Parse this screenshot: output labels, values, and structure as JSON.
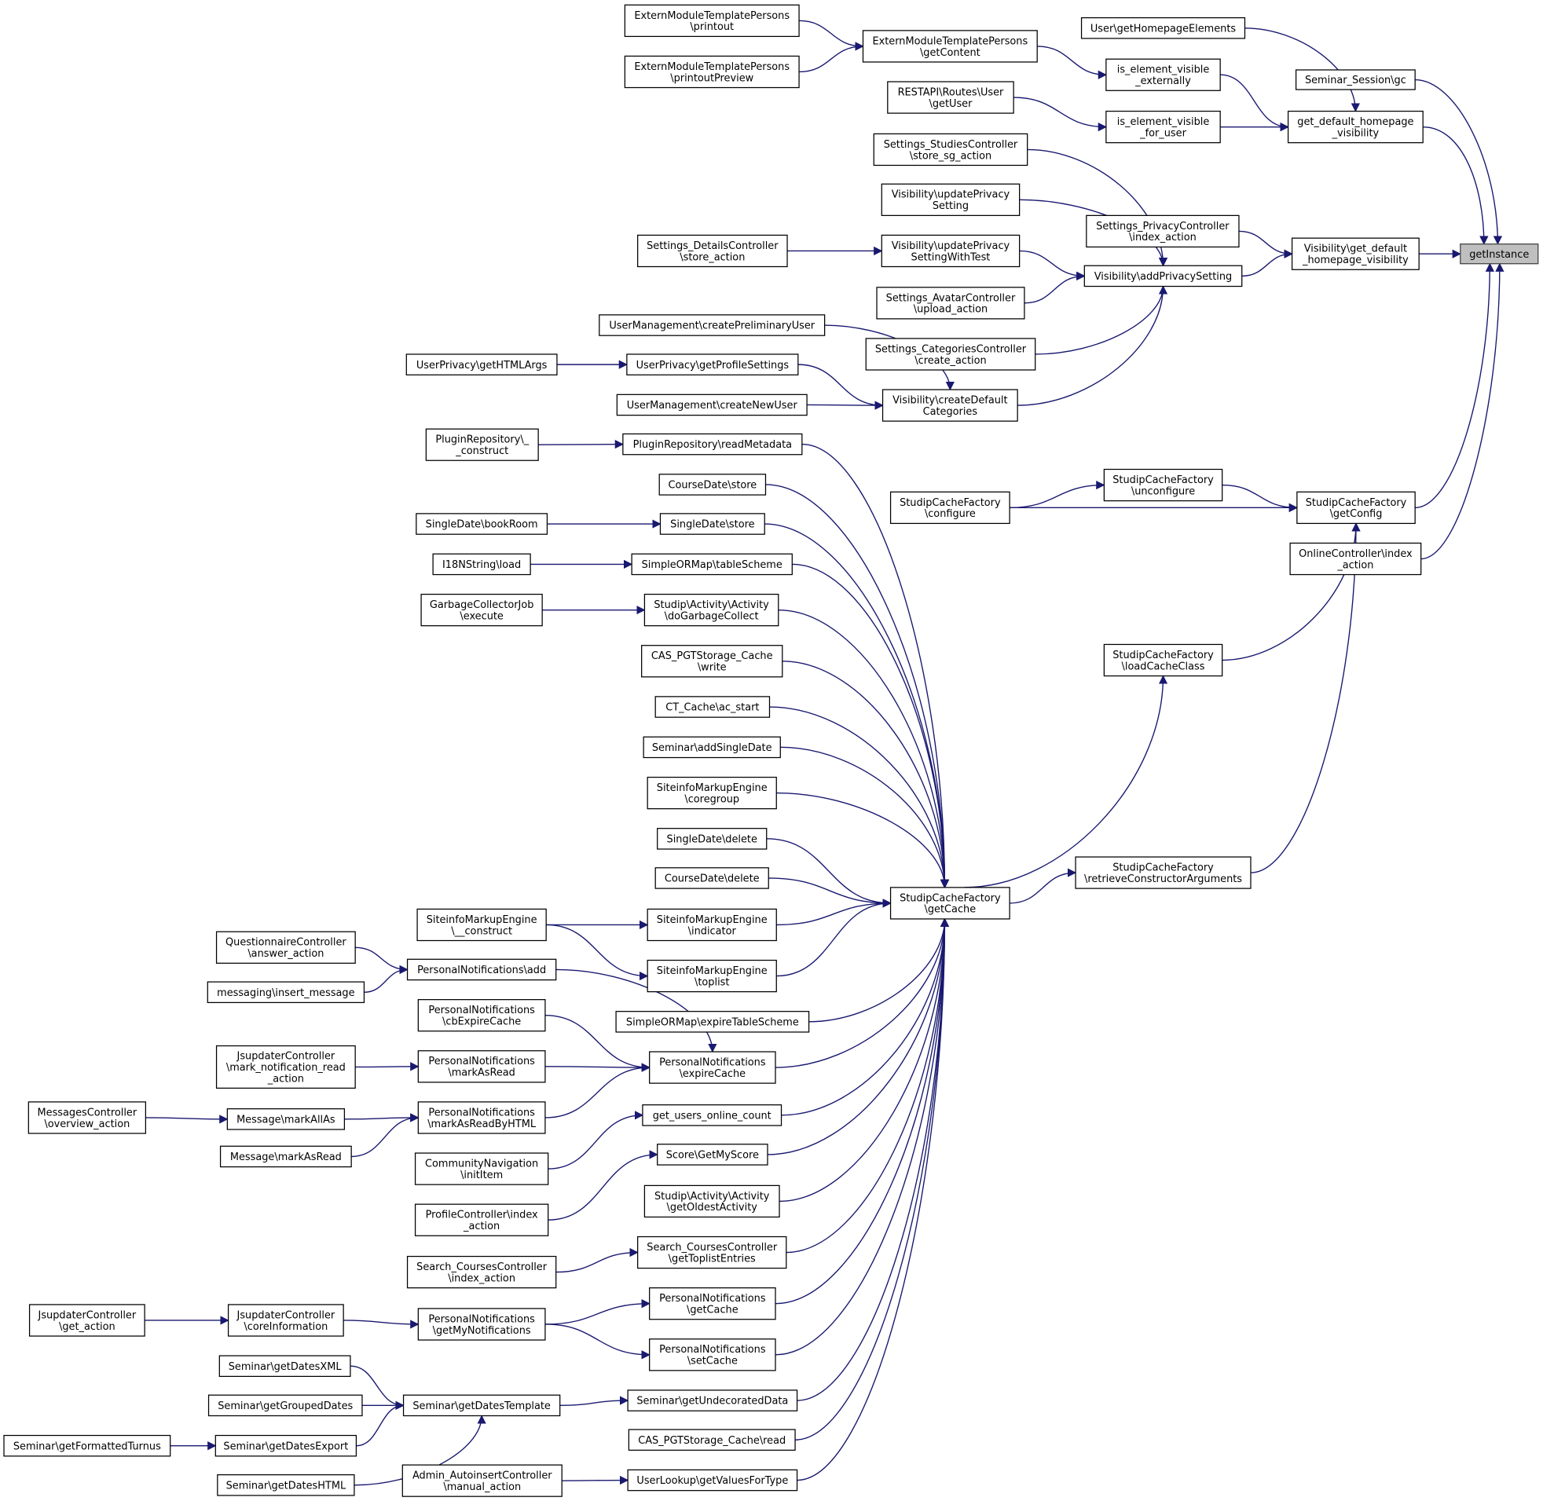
{
  "colors": {
    "edge": "#191970",
    "focus_fill": "#bfbfbf",
    "node_fill": "#ffffff"
  },
  "nodes": [
    {
      "lines": [
        "getInstance"
      ],
      "focus": true
    },
    {
      "lines": [
        "Seminar_Session\\gc"
      ]
    },
    {
      "lines": [
        "get_default_homepage",
        "_visibility"
      ]
    },
    {
      "lines": [
        "Visibility\\get_default",
        "_homepage_visibility"
      ]
    },
    {
      "lines": [
        "StudipCacheFactory",
        "\\getConfig"
      ]
    },
    {
      "lines": [
        "OnlineController\\index",
        "_action"
      ]
    },
    {
      "lines": [
        "User\\getHomepageElements"
      ]
    },
    {
      "lines": [
        "is_element_visible",
        "_externally"
      ]
    },
    {
      "lines": [
        "is_element_visible",
        "_for_user"
      ]
    },
    {
      "lines": [
        "Settings_PrivacyController",
        "\\index_action"
      ]
    },
    {
      "lines": [
        "Visibility\\addPrivacySetting"
      ]
    },
    {
      "lines": [
        "StudipCacheFactory",
        "\\unconfigure"
      ]
    },
    {
      "lines": [
        "StudipCacheFactory",
        "\\loadCacheClass"
      ]
    },
    {
      "lines": [
        "StudipCacheFactory",
        "\\retrieveConstructorArguments"
      ]
    },
    {
      "lines": [
        "StudipCacheFactory",
        "\\configure"
      ]
    },
    {
      "lines": [
        "StudipCacheFactory",
        "\\getCache"
      ]
    },
    {
      "lines": [
        "ExternModuleTemplatePersons",
        "\\getContent"
      ]
    },
    {
      "lines": [
        "ExternModuleTemplatePersons",
        "\\printout"
      ]
    },
    {
      "lines": [
        "ExternModuleTemplatePersons",
        "\\printoutPreview"
      ]
    },
    {
      "lines": [
        "RESTAPI\\Routes\\User",
        "\\getUser"
      ]
    },
    {
      "lines": [
        "Settings_StudiesController",
        "\\store_sg_action"
      ]
    },
    {
      "lines": [
        "Visibility\\updatePrivacy",
        "Setting"
      ]
    },
    {
      "lines": [
        "Visibility\\updatePrivacy",
        "SettingWithTest"
      ]
    },
    {
      "lines": [
        "Settings_DetailsController",
        "\\store_action"
      ]
    },
    {
      "lines": [
        "Settings_AvatarController",
        "\\upload_action"
      ]
    },
    {
      "lines": [
        "Settings_CategoriesController",
        "\\create_action"
      ]
    },
    {
      "lines": [
        "Visibility\\createDefault",
        "Categories"
      ]
    },
    {
      "lines": [
        "UserManagement\\createPreliminaryUser"
      ]
    },
    {
      "lines": [
        "UserPrivacy\\getProfileSettings"
      ]
    },
    {
      "lines": [
        "UserPrivacy\\getHTMLArgs"
      ]
    },
    {
      "lines": [
        "UserManagement\\createNewUser"
      ]
    },
    {
      "lines": [
        "PluginRepository\\readMetadata"
      ]
    },
    {
      "lines": [
        "PluginRepository\\_",
        "_construct"
      ]
    },
    {
      "lines": [
        "CourseDate\\store"
      ]
    },
    {
      "lines": [
        "SingleDate\\store"
      ]
    },
    {
      "lines": [
        "SingleDate\\bookRoom"
      ]
    },
    {
      "lines": [
        "SimpleORMap\\tableScheme"
      ]
    },
    {
      "lines": [
        "I18NString\\load"
      ]
    },
    {
      "lines": [
        "Studip\\Activity\\Activity",
        "\\doGarbageCollect"
      ]
    },
    {
      "lines": [
        "GarbageCollectorJob",
        "\\execute"
      ]
    },
    {
      "lines": [
        "CAS_PGTStorage_Cache",
        "\\write"
      ]
    },
    {
      "lines": [
        "CT_Cache\\ac_start"
      ]
    },
    {
      "lines": [
        "Seminar\\addSingleDate"
      ]
    },
    {
      "lines": [
        "SiteinfoMarkupEngine",
        "\\coregroup"
      ]
    },
    {
      "lines": [
        "SingleDate\\delete"
      ]
    },
    {
      "lines": [
        "CourseDate\\delete"
      ]
    },
    {
      "lines": [
        "SiteinfoMarkupEngine",
        "\\indicator"
      ]
    },
    {
      "lines": [
        "SiteinfoMarkupEngine",
        "\\__construct"
      ]
    },
    {
      "lines": [
        "SiteinfoMarkupEngine",
        "\\toplist"
      ]
    },
    {
      "lines": [
        "SimpleORMap\\expireTableScheme"
      ]
    },
    {
      "lines": [
        "PersonalNotifications",
        "\\expireCache"
      ]
    },
    {
      "lines": [
        "PersonalNotifications\\add"
      ]
    },
    {
      "lines": [
        "QuestionnaireController",
        "\\answer_action"
      ]
    },
    {
      "lines": [
        "messaging\\insert_message"
      ]
    },
    {
      "lines": [
        "PersonalNotifications",
        "\\cbExpireCache"
      ]
    },
    {
      "lines": [
        "PersonalNotifications",
        "\\markAsRead"
      ]
    },
    {
      "lines": [
        "JsupdaterController",
        "\\mark_notification_read",
        "_action"
      ]
    },
    {
      "lines": [
        "PersonalNotifications",
        "\\markAsReadByHTML"
      ]
    },
    {
      "lines": [
        "Message\\markAllAs"
      ]
    },
    {
      "lines": [
        "MessagesController",
        "\\overview_action"
      ]
    },
    {
      "lines": [
        "Message\\markAsRead"
      ]
    },
    {
      "lines": [
        "get_users_online_count"
      ]
    },
    {
      "lines": [
        "Score\\GetMyScore"
      ]
    },
    {
      "lines": [
        "CommunityNavigation",
        "\\initItem"
      ]
    },
    {
      "lines": [
        "ProfileController\\index",
        "_action"
      ]
    },
    {
      "lines": [
        "Studip\\Activity\\Activity",
        "\\getOldestActivity"
      ]
    },
    {
      "lines": [
        "Search_CoursesController",
        "\\getToplistEntries"
      ]
    },
    {
      "lines": [
        "Search_CoursesController",
        "\\index_action"
      ]
    },
    {
      "lines": [
        "PersonalNotifications",
        "\\getCache"
      ]
    },
    {
      "lines": [
        "PersonalNotifications",
        "\\getMyNotifications"
      ]
    },
    {
      "lines": [
        "JsupdaterController",
        "\\coreInformation"
      ]
    },
    {
      "lines": [
        "JsupdaterController",
        "\\get_action"
      ]
    },
    {
      "lines": [
        "PersonalNotifications",
        "\\setCache"
      ]
    },
    {
      "lines": [
        "Seminar\\getUndecoratedData"
      ]
    },
    {
      "lines": [
        "Seminar\\getDatesTemplate"
      ]
    },
    {
      "lines": [
        "Seminar\\getDatesXML"
      ]
    },
    {
      "lines": [
        "Seminar\\getGroupedDates"
      ]
    },
    {
      "lines": [
        "Seminar\\getDatesExport"
      ]
    },
    {
      "lines": [
        "Seminar\\getFormattedTurnus"
      ]
    },
    {
      "lines": [
        "Seminar\\getDatesHTML"
      ]
    },
    {
      "lines": [
        "CAS_PGTStorage_Cache\\read"
      ]
    },
    {
      "lines": [
        "UserLookup\\getValuesForType"
      ]
    },
    {
      "lines": [
        "Admin_AutoinsertController",
        "\\manual_action"
      ]
    }
  ],
  "edges": [
    [
      1,
      0
    ],
    [
      2,
      0
    ],
    [
      3,
      0
    ],
    [
      4,
      0
    ],
    [
      5,
      0
    ],
    [
      6,
      2
    ],
    [
      7,
      2
    ],
    [
      8,
      2
    ],
    [
      16,
      7
    ],
    [
      17,
      16
    ],
    [
      18,
      16
    ],
    [
      19,
      8
    ],
    [
      9,
      3
    ],
    [
      10,
      3
    ],
    [
      20,
      10
    ],
    [
      21,
      10
    ],
    [
      22,
      10
    ],
    [
      24,
      10
    ],
    [
      25,
      10
    ],
    [
      26,
      10
    ],
    [
      23,
      22
    ],
    [
      27,
      26
    ],
    [
      28,
      26
    ],
    [
      30,
      26
    ],
    [
      29,
      28
    ],
    [
      11,
      4
    ],
    [
      14,
      4
    ],
    [
      14,
      11
    ],
    [
      12,
      4
    ],
    [
      13,
      4
    ],
    [
      15,
      12
    ],
    [
      15,
      13
    ],
    [
      31,
      15
    ],
    [
      33,
      15
    ],
    [
      34,
      15
    ],
    [
      36,
      15
    ],
    [
      38,
      15
    ],
    [
      40,
      15
    ],
    [
      41,
      15
    ],
    [
      42,
      15
    ],
    [
      43,
      15
    ],
    [
      44,
      15
    ],
    [
      45,
      15
    ],
    [
      46,
      15
    ],
    [
      48,
      15
    ],
    [
      49,
      15
    ],
    [
      50,
      15
    ],
    [
      61,
      15
    ],
    [
      62,
      15
    ],
    [
      65,
      15
    ],
    [
      66,
      15
    ],
    [
      68,
      15
    ],
    [
      72,
      15
    ],
    [
      73,
      15
    ],
    [
      80,
      15
    ],
    [
      81,
      15
    ],
    [
      32,
      31
    ],
    [
      35,
      34
    ],
    [
      37,
      36
    ],
    [
      39,
      38
    ],
    [
      47,
      46
    ],
    [
      47,
      48
    ],
    [
      51,
      50
    ],
    [
      54,
      50
    ],
    [
      55,
      50
    ],
    [
      57,
      50
    ],
    [
      52,
      51
    ],
    [
      53,
      51
    ],
    [
      56,
      55
    ],
    [
      58,
      57
    ],
    [
      60,
      57
    ],
    [
      59,
      58
    ],
    [
      63,
      61
    ],
    [
      64,
      62
    ],
    [
      67,
      66
    ],
    [
      69,
      68
    ],
    [
      69,
      72
    ],
    [
      70,
      69
    ],
    [
      71,
      70
    ],
    [
      74,
      73
    ],
    [
      75,
      74
    ],
    [
      76,
      74
    ],
    [
      77,
      74
    ],
    [
      79,
      74
    ],
    [
      78,
      77
    ],
    [
      82,
      81
    ]
  ]
}
